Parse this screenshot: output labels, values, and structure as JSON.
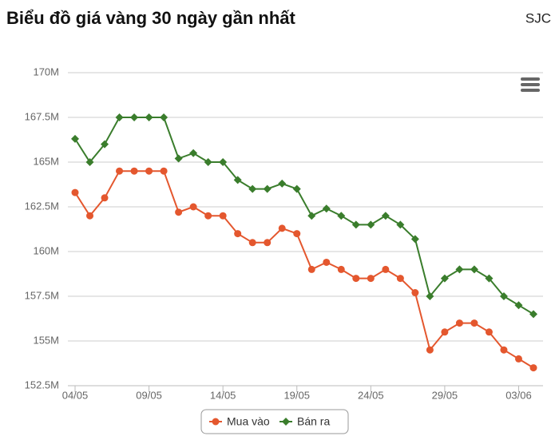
{
  "chart_data": {
    "type": "line",
    "title": "Biểu đồ giá vàng 30 ngày gần nhất",
    "subtitle": "SJC",
    "categories": [
      "04/05",
      null,
      null,
      null,
      null,
      "09/05",
      null,
      null,
      null,
      null,
      "14/05",
      null,
      null,
      null,
      null,
      "19/05",
      null,
      null,
      null,
      null,
      "24/05",
      null,
      null,
      null,
      null,
      "29/05",
      null,
      null,
      null,
      null,
      "03/06",
      null
    ],
    "series": [
      {
        "name": "Mua vào",
        "color": "#e4572e",
        "marker": "circle",
        "values": [
          163.3,
          162.0,
          163.0,
          164.5,
          164.5,
          164.5,
          164.5,
          162.2,
          162.5,
          162.0,
          162.0,
          161.0,
          160.5,
          160.5,
          161.3,
          161.0,
          159.0,
          159.4,
          159.0,
          158.5,
          158.5,
          159.0,
          158.5,
          157.7,
          154.5,
          155.5,
          156.0,
          156.0,
          155.5,
          154.5,
          154.0,
          153.5
        ]
      },
      {
        "name": "Bán ra",
        "color": "#3a7d2c",
        "marker": "diamond",
        "values": [
          166.3,
          165.0,
          166.0,
          167.5,
          167.5,
          167.5,
          167.5,
          165.2,
          165.5,
          165.0,
          165.0,
          164.0,
          163.5,
          163.5,
          163.8,
          163.5,
          162.0,
          162.4,
          162.0,
          161.5,
          161.5,
          162.0,
          161.5,
          160.7,
          157.5,
          158.5,
          159.0,
          159.0,
          158.5,
          157.5,
          157.0,
          156.5
        ]
      }
    ],
    "ylim": [
      152.5,
      170
    ],
    "yticks": [
      {
        "value": 152.5,
        "label": "152.5M"
      },
      {
        "value": 155,
        "label": "155M"
      },
      {
        "value": 157.5,
        "label": "157.5M"
      },
      {
        "value": 160,
        "label": "160M"
      },
      {
        "value": 162.5,
        "label": "162.5M"
      },
      {
        "value": 165,
        "label": "165M"
      },
      {
        "value": 167.5,
        "label": "167.5M"
      },
      {
        "value": 170,
        "label": "170M"
      }
    ],
    "grid": true,
    "legend": "bottom"
  }
}
